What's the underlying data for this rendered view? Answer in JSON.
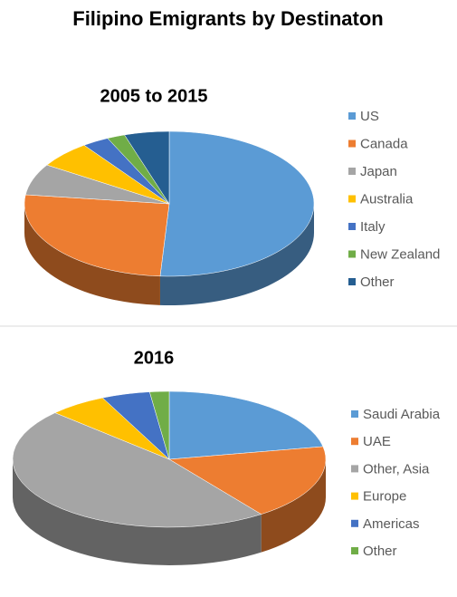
{
  "title": "Filipino Emigrants by Destinaton",
  "chart_data": [
    {
      "type": "pie",
      "title": "2005 to 2015",
      "categories": [
        "US",
        "Canada",
        "Japan",
        "Australia",
        "Italy",
        "New Zealand",
        "Other"
      ],
      "values": [
        51,
        26,
        7,
        6,
        3,
        2,
        5
      ],
      "colors": [
        "#5b9bd5",
        "#ed7d31",
        "#a5a5a5",
        "#ffc000",
        "#4472c4",
        "#70ad47",
        "#255e91"
      ],
      "legend": "right"
    },
    {
      "type": "pie",
      "title": "2016",
      "categories": [
        "Saudi Arabia",
        "UAE",
        "Other, Asia",
        "Europe",
        "Americas",
        "Other"
      ],
      "values": [
        22,
        18,
        47,
        6,
        5,
        2
      ],
      "colors": [
        "#5b9bd5",
        "#ed7d31",
        "#a5a5a5",
        "#ffc000",
        "#4472c4",
        "#70ad47"
      ],
      "legend": "right"
    }
  ]
}
